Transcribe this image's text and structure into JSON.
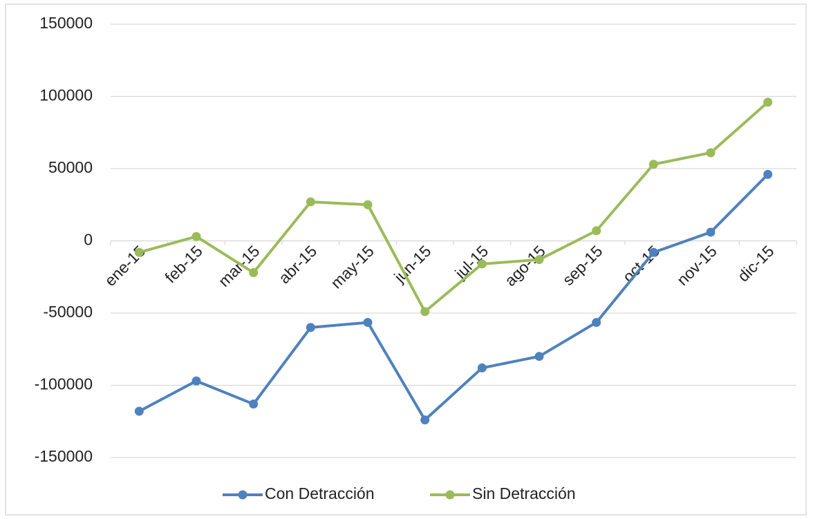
{
  "chart_data": {
    "type": "line",
    "categories": [
      "ene-15",
      "feb-15",
      "mar-15",
      "abr-15",
      "may-15",
      "jun-15",
      "jul-15",
      "ago-15",
      "sep-15",
      "oct-15",
      "nov-15",
      "dic-15"
    ],
    "series": [
      {
        "name": "Con Detracción",
        "color": "#4f81bd",
        "values": [
          -118000,
          -97000,
          -113000,
          -60000,
          -56500,
          -124000,
          -88000,
          -80000,
          -56500,
          -8000,
          6000,
          46000
        ]
      },
      {
        "name": "Sin Detracción",
        "color": "#9bbb59",
        "values": [
          -8000,
          3000,
          -22000,
          27000,
          25000,
          -49000,
          -16000,
          -13000,
          7000,
          53000,
          61000,
          96000
        ]
      }
    ],
    "ylim": [
      -150000,
      150000
    ],
    "yticks": [
      -150000,
      -100000,
      -50000,
      0,
      50000,
      100000,
      150000
    ],
    "grid": true,
    "legend": "bottom"
  }
}
